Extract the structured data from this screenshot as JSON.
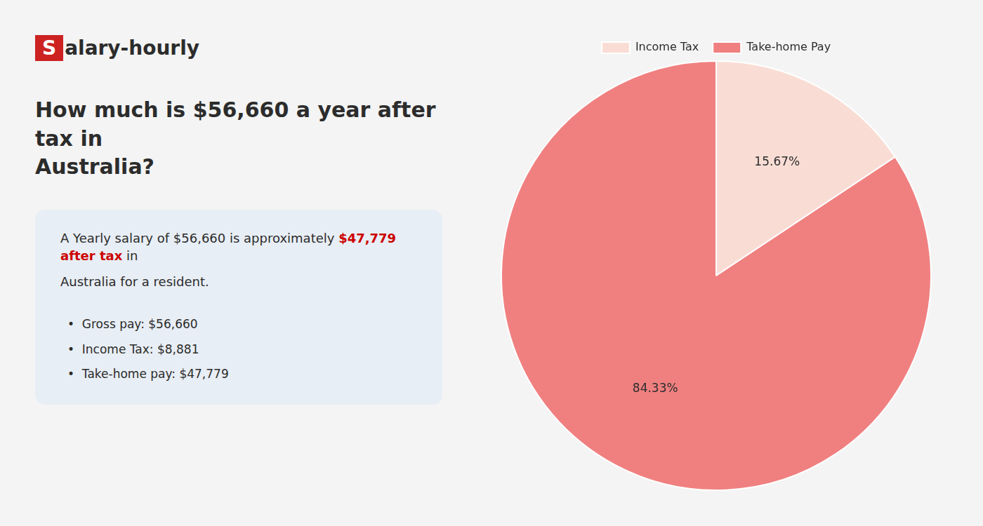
{
  "chart_data": {
    "type": "pie",
    "title": "How much is $56,660 a year after tax in\nAustralia?",
    "annotations": [
      [
        {
          "text": "S",
          "color": "#cc2222"
        },
        {
          "text": "alary-hourly"
        }
      ],
      [
        {
          "text": "A Yearly salary of $56,660 is approximately "
        },
        {
          "text": "$47,779 after tax",
          "color": "#cc0000"
        },
        {
          "text": " in"
        }
      ],
      "Australia for a resident.",
      "•  Gross pay: $56,660",
      "•  Income Tax: $8,881",
      "•  Take-home pay: $47,779"
    ],
    "categories": [
      "Income Tax",
      "Take-home Pay"
    ],
    "values": [
      15.67,
      84.33
    ],
    "value_labels": [
      "15.67%",
      "84.33%"
    ],
    "colors": [
      "#f9ddd5",
      "#f08080"
    ],
    "data_labels": true,
    "legend": "top"
  }
}
